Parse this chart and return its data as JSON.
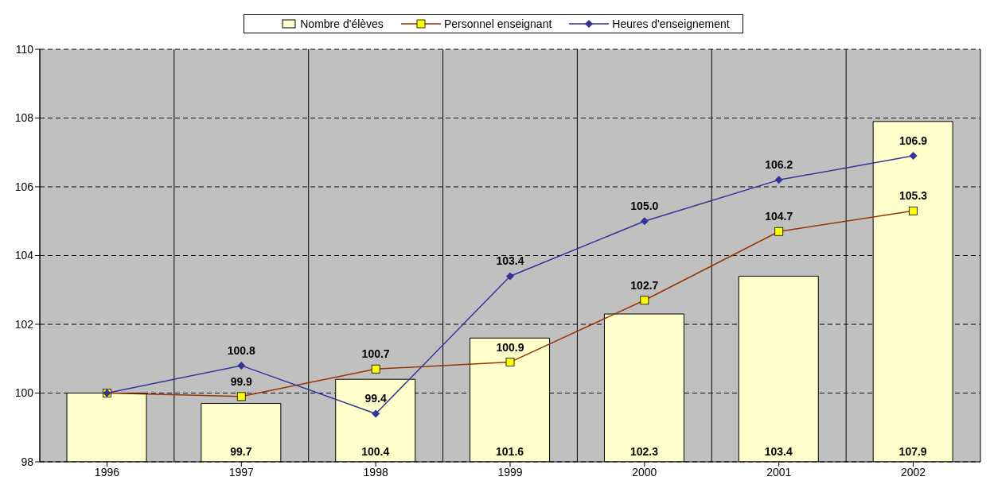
{
  "chart_data": {
    "type": "bar",
    "categories": [
      "1996",
      "1997",
      "1998",
      "1999",
      "2000",
      "2001",
      "2002"
    ],
    "series": [
      {
        "name": "Nombre d'élèves",
        "color": "#ffffcc",
        "values": [
          100,
          99.7,
          100.4,
          101.6,
          102.3,
          103.4,
          107.9
        ],
        "value_labels": [
          null,
          "99.7",
          "100.4",
          "101.6",
          "102.3",
          "103.4",
          "107.9"
        ]
      },
      {
        "name": "Personnel enseignant",
        "type": "line",
        "color": "#993300",
        "marker": "square",
        "values": [
          100,
          99.9,
          100.7,
          100.9,
          102.7,
          104.7,
          105.3
        ],
        "value_labels": [
          null,
          "99.9",
          "100.7",
          "100.9",
          "102.7",
          "104.7",
          "105.3"
        ]
      },
      {
        "name": "Heures d'enseignement",
        "type": "line",
        "color": "#333399",
        "marker": "diamond",
        "values": [
          100,
          100.8,
          99.4,
          103.4,
          105.0,
          106.2,
          106.9
        ],
        "value_labels": [
          null,
          "100.8",
          "99.4",
          "103.4",
          "105.0",
          "106.2",
          "106.9"
        ]
      }
    ],
    "ylim": [
      98,
      110
    ],
    "yticks": [
      98,
      100,
      102,
      104,
      106,
      108,
      110
    ],
    "grid": true,
    "legend": "top"
  }
}
